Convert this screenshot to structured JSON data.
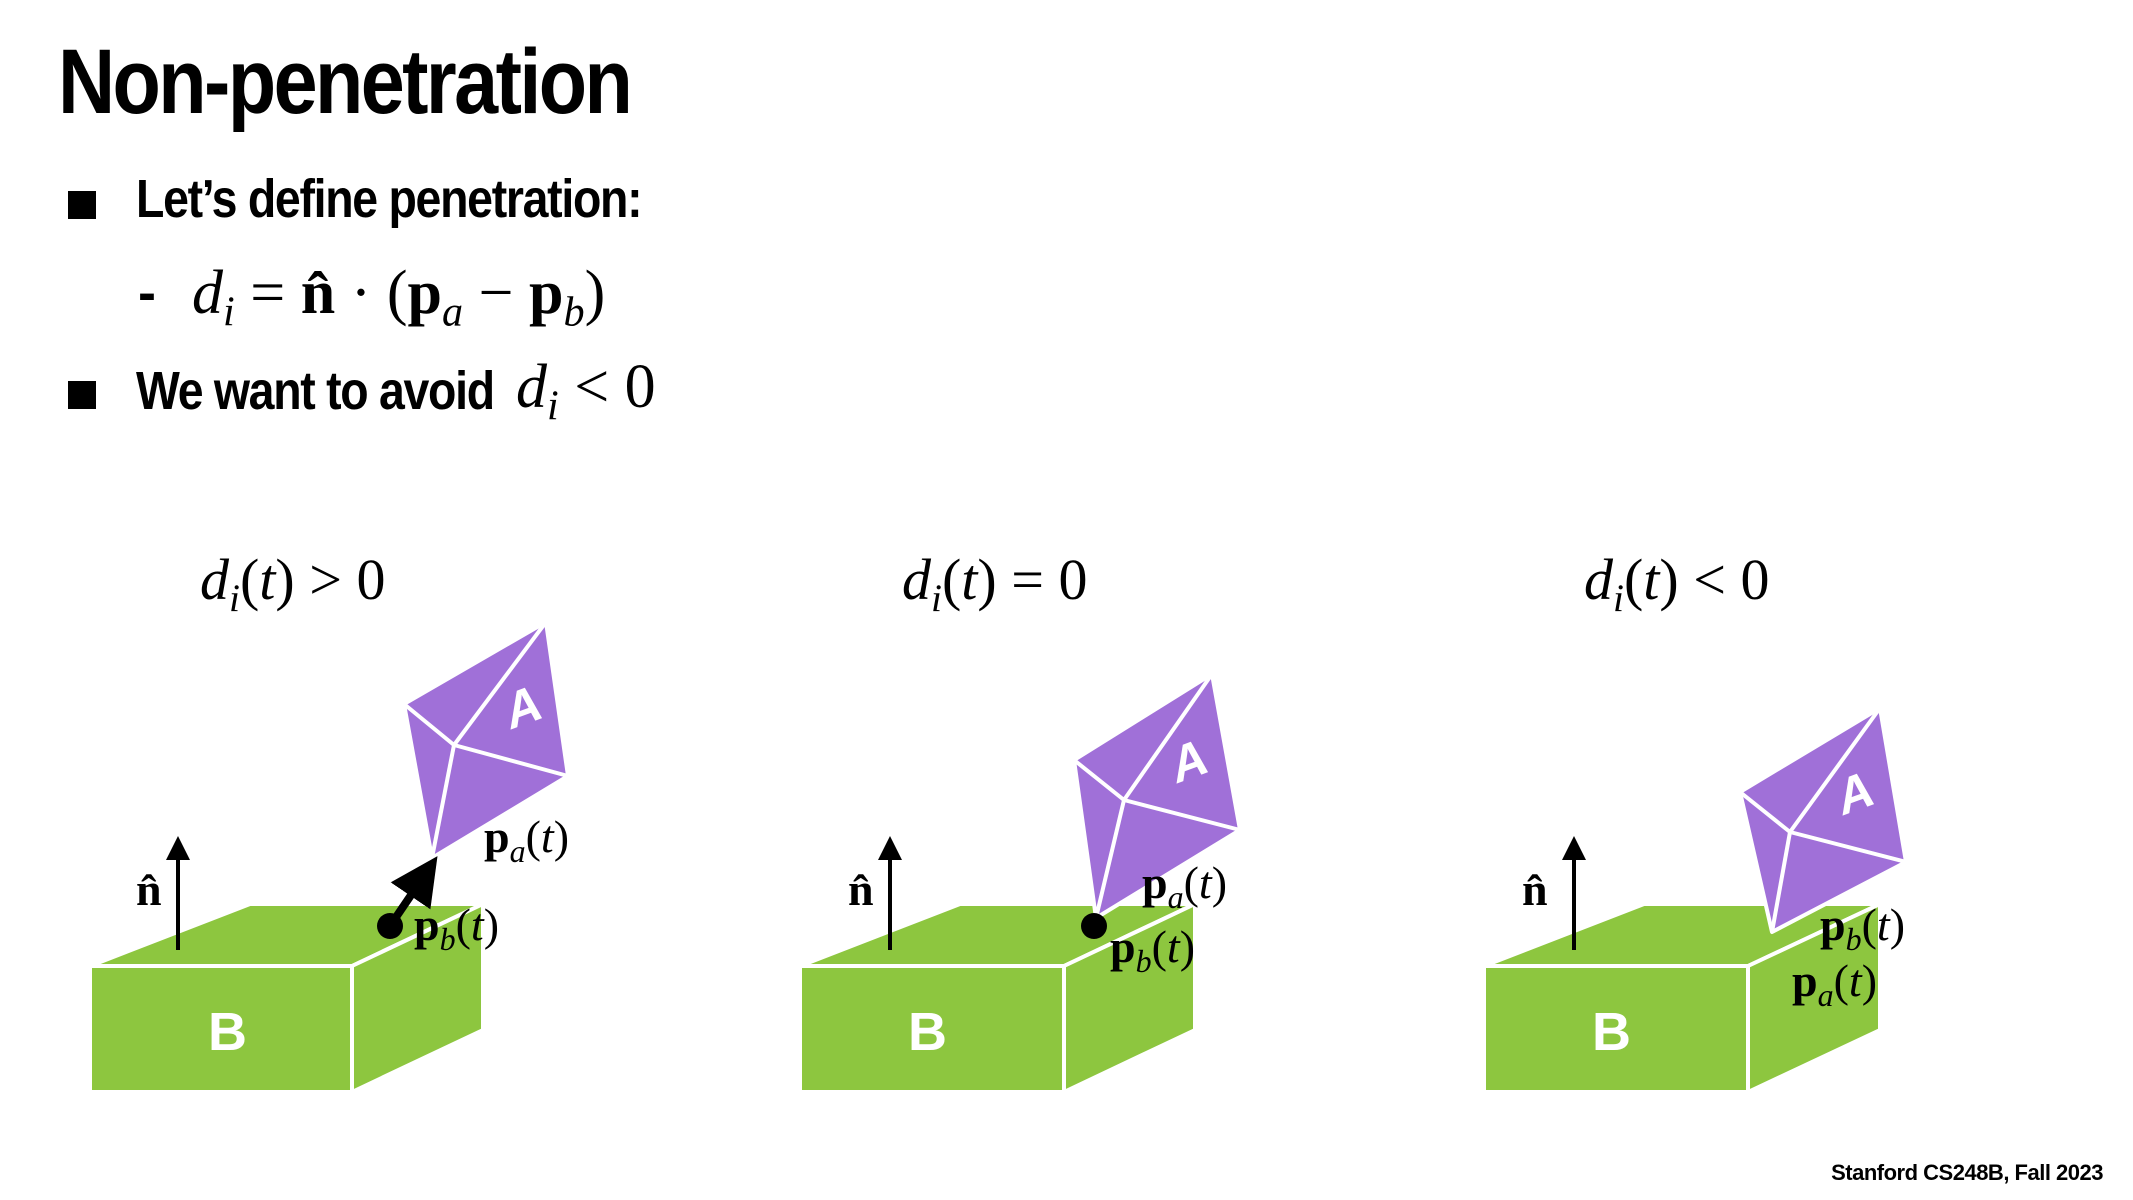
{
  "slide": {
    "title": "Non-penetration",
    "bullets": [
      {
        "text": "Let’s define penetration:"
      },
      {
        "text": "We want to avoid"
      }
    ],
    "footer": "Stanford CS248B, Fall 2023"
  },
  "diagram": {
    "panels": [
      {
        "condition": "> 0",
        "box_label": "B",
        "object_label": "A"
      },
      {
        "condition": "= 0",
        "box_label": "B",
        "object_label": "A"
      },
      {
        "condition": "< 0",
        "box_label": "B",
        "object_label": "A"
      }
    ]
  },
  "colors": {
    "box_green": "#8dc63f",
    "object_purple": "#a070d8",
    "edge_white": "#ffffff",
    "text": "#000000"
  }
}
